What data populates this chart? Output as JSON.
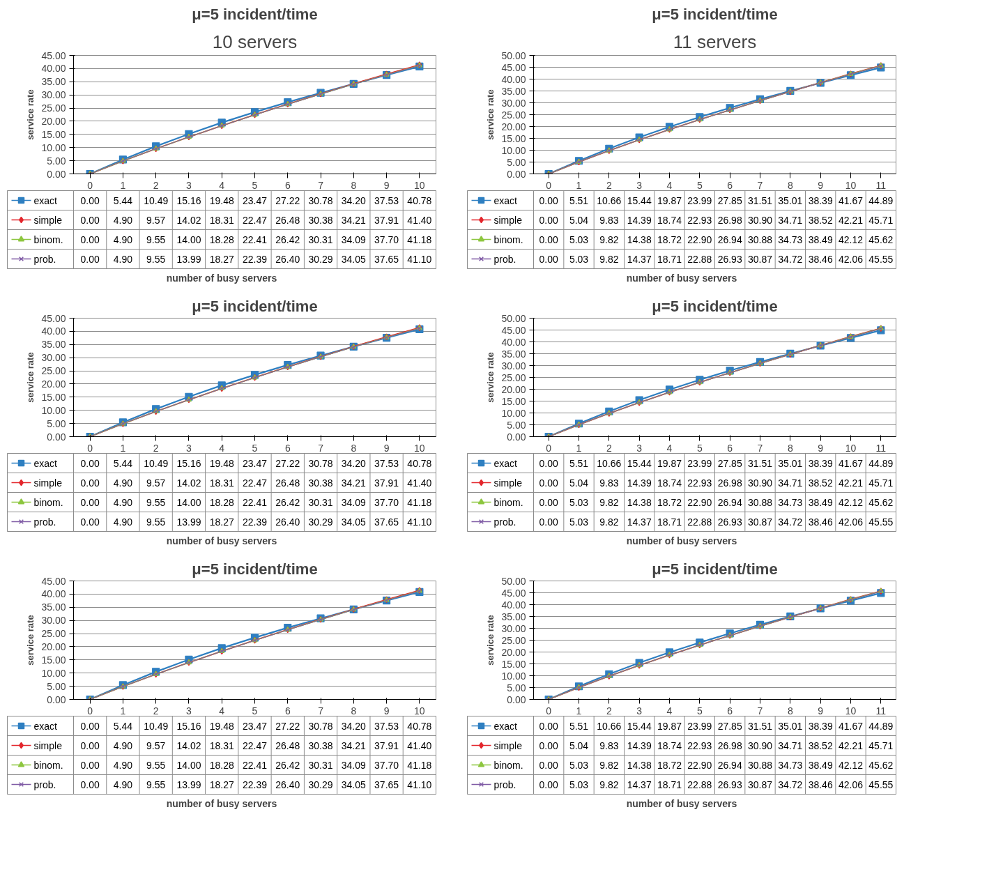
{
  "chart_data": [
    {
      "type": "line",
      "title": "μ=5 incident/time",
      "annotations": [
        "10 servers"
      ],
      "xlabel": "number of busy servers",
      "ylabel": "service rate",
      "categories": [
        "0",
        "1",
        "2",
        "3",
        "4",
        "5",
        "6",
        "7",
        "8",
        "9",
        "10"
      ],
      "ylim": [
        0,
        45
      ],
      "yticks": [
        {
          "value": 0,
          "label": "0.00"
        },
        {
          "value": 5,
          "label": "5.00"
        },
        {
          "value": 10,
          "label": "10.00"
        },
        {
          "value": 15,
          "label": "15.00"
        },
        {
          "value": 20,
          "label": "20.00"
        },
        {
          "value": 25,
          "label": "25.00"
        },
        {
          "value": 30,
          "label": "30.00"
        },
        {
          "value": 35,
          "label": "35.00"
        },
        {
          "value": 40,
          "label": "40.00"
        },
        {
          "value": 45,
          "label": "45.00"
        }
      ],
      "grid": "y",
      "legend": "bottom",
      "series": [
        {
          "name": "exact",
          "color": "#2e7fc1",
          "marker": "square",
          "values": [
            0.0,
            5.44,
            10.49,
            15.16,
            19.48,
            23.47,
            27.22,
            30.78,
            34.2,
            37.53,
            40.78
          ],
          "value_labels": [
            "0.00",
            "5.44",
            "10.49",
            "15.16",
            "19.48",
            "23.47",
            "27.22",
            "30.78",
            "34.20",
            "37.53",
            "40.78"
          ]
        },
        {
          "name": "simple",
          "color": "#e3262c",
          "marker": "diamond",
          "values": [
            0.0,
            4.9,
            9.57,
            14.02,
            18.31,
            22.47,
            26.48,
            30.38,
            34.21,
            37.91,
            41.4
          ],
          "value_labels": [
            "0.00",
            "4.90",
            "9.57",
            "14.02",
            "18.31",
            "22.47",
            "26.48",
            "30.38",
            "34.21",
            "37.91",
            "41.40"
          ]
        },
        {
          "name": "binom.",
          "color": "#8dc63f",
          "marker": "triangle",
          "values": [
            0.0,
            4.9,
            9.55,
            14.0,
            18.28,
            22.41,
            26.42,
            30.31,
            34.09,
            37.7,
            41.18
          ],
          "value_labels": [
            "0.00",
            "4.90",
            "9.55",
            "14.00",
            "18.28",
            "22.41",
            "26.42",
            "30.31",
            "34.09",
            "37.70",
            "41.18"
          ]
        },
        {
          "name": "prob.",
          "color": "#7f5ba5",
          "marker": "cross",
          "values": [
            0.0,
            4.9,
            9.55,
            13.99,
            18.27,
            22.39,
            26.4,
            30.29,
            34.05,
            37.65,
            41.1
          ],
          "value_labels": [
            "0.00",
            "4.90",
            "9.55",
            "13.99",
            "18.27",
            "22.39",
            "26.40",
            "30.29",
            "34.05",
            "37.65",
            "41.10"
          ]
        }
      ]
    },
    {
      "type": "line",
      "title": "μ=5 incident/time",
      "annotations": [
        "11 servers"
      ],
      "xlabel": "number of busy servers",
      "ylabel": "service rate",
      "categories": [
        "0",
        "1",
        "2",
        "3",
        "4",
        "5",
        "6",
        "7",
        "8",
        "9",
        "10",
        "11"
      ],
      "ylim": [
        0,
        50
      ],
      "yticks": [
        {
          "value": 0,
          "label": "0.00"
        },
        {
          "value": 5,
          "label": "5.00"
        },
        {
          "value": 10,
          "label": "10.00"
        },
        {
          "value": 15,
          "label": "15.00"
        },
        {
          "value": 20,
          "label": "20.00"
        },
        {
          "value": 25,
          "label": "25.00"
        },
        {
          "value": 30,
          "label": "30.00"
        },
        {
          "value": 35,
          "label": "35.00"
        },
        {
          "value": 40,
          "label": "40.00"
        },
        {
          "value": 45,
          "label": "45.00"
        },
        {
          "value": 50,
          "label": "50.00"
        }
      ],
      "grid": "y",
      "legend": "bottom",
      "series": [
        {
          "name": "exact",
          "color": "#2e7fc1",
          "marker": "square",
          "values": [
            0.0,
            5.51,
            10.66,
            15.44,
            19.87,
            23.99,
            27.85,
            31.51,
            35.01,
            38.39,
            41.67,
            44.89
          ],
          "value_labels": [
            "0.00",
            "5.51",
            "10.66",
            "15.44",
            "19.87",
            "23.99",
            "27.85",
            "31.51",
            "35.01",
            "38.39",
            "41.67",
            "44.89"
          ]
        },
        {
          "name": "simple",
          "color": "#e3262c",
          "marker": "diamond",
          "values": [
            0.0,
            5.04,
            9.83,
            14.39,
            18.74,
            22.93,
            26.98,
            30.9,
            34.71,
            38.52,
            42.21,
            45.71
          ],
          "value_labels": [
            "0.00",
            "5.04",
            "9.83",
            "14.39",
            "18.74",
            "22.93",
            "26.98",
            "30.90",
            "34.71",
            "38.52",
            "42.21",
            "45.71"
          ]
        },
        {
          "name": "binom.",
          "color": "#8dc63f",
          "marker": "triangle",
          "values": [
            0.0,
            5.03,
            9.82,
            14.38,
            18.72,
            22.9,
            26.94,
            30.88,
            34.73,
            38.49,
            42.12,
            45.62
          ],
          "value_labels": [
            "0.00",
            "5.03",
            "9.82",
            "14.38",
            "18.72",
            "22.90",
            "26.94",
            "30.88",
            "34.73",
            "38.49",
            "42.12",
            "45.62"
          ]
        },
        {
          "name": "prob.",
          "color": "#7f5ba5",
          "marker": "cross",
          "values": [
            0.0,
            5.03,
            9.82,
            14.37,
            18.71,
            22.88,
            26.93,
            30.87,
            34.72,
            38.46,
            42.06,
            45.55
          ],
          "value_labels": [
            "0.00",
            "5.03",
            "9.82",
            "14.37",
            "18.71",
            "22.88",
            "26.93",
            "30.87",
            "34.72",
            "38.46",
            "42.06",
            "45.55"
          ]
        }
      ]
    },
    {
      "type": "line",
      "title": "μ=5 incident/time",
      "xlabel": "number of busy servers",
      "ylabel": "service rate",
      "categories": [
        "0",
        "1",
        "2",
        "3",
        "4",
        "5",
        "6",
        "7",
        "8",
        "9",
        "10"
      ],
      "ylim": [
        0,
        45
      ],
      "yticks": [
        {
          "value": 0,
          "label": "0.00"
        },
        {
          "value": 5,
          "label": "5.00"
        },
        {
          "value": 10,
          "label": "10.00"
        },
        {
          "value": 15,
          "label": "15.00"
        },
        {
          "value": 20,
          "label": "20.00"
        },
        {
          "value": 25,
          "label": "25.00"
        },
        {
          "value": 30,
          "label": "30.00"
        },
        {
          "value": 35,
          "label": "35.00"
        },
        {
          "value": 40,
          "label": "40.00"
        },
        {
          "value": 45,
          "label": "45.00"
        }
      ],
      "grid": "y",
      "legend": "bottom",
      "series": [
        {
          "name": "exact",
          "color": "#2e7fc1",
          "marker": "square",
          "values": [
            0.0,
            5.44,
            10.49,
            15.16,
            19.48,
            23.47,
            27.22,
            30.78,
            34.2,
            37.53,
            40.78
          ],
          "value_labels": [
            "0.00",
            "5.44",
            "10.49",
            "15.16",
            "19.48",
            "23.47",
            "27.22",
            "30.78",
            "34.20",
            "37.53",
            "40.78"
          ]
        },
        {
          "name": "simple",
          "color": "#e3262c",
          "marker": "diamond",
          "values": [
            0.0,
            4.9,
            9.57,
            14.02,
            18.31,
            22.47,
            26.48,
            30.38,
            34.21,
            37.91,
            41.4
          ],
          "value_labels": [
            "0.00",
            "4.90",
            "9.57",
            "14.02",
            "18.31",
            "22.47",
            "26.48",
            "30.38",
            "34.21",
            "37.91",
            "41.40"
          ]
        },
        {
          "name": "binom.",
          "color": "#8dc63f",
          "marker": "triangle",
          "values": [
            0.0,
            4.9,
            9.55,
            14.0,
            18.28,
            22.41,
            26.42,
            30.31,
            34.09,
            37.7,
            41.18
          ],
          "value_labels": [
            "0.00",
            "4.90",
            "9.55",
            "14.00",
            "18.28",
            "22.41",
            "26.42",
            "30.31",
            "34.09",
            "37.70",
            "41.18"
          ]
        },
        {
          "name": "prob.",
          "color": "#7f5ba5",
          "marker": "cross",
          "values": [
            0.0,
            4.9,
            9.55,
            13.99,
            18.27,
            22.39,
            26.4,
            30.29,
            34.05,
            37.65,
            41.1
          ],
          "value_labels": [
            "0.00",
            "4.90",
            "9.55",
            "13.99",
            "18.27",
            "22.39",
            "26.40",
            "30.29",
            "34.05",
            "37.65",
            "41.10"
          ]
        }
      ]
    },
    {
      "type": "line",
      "title": "μ=5 incident/time",
      "xlabel": "number of busy servers",
      "ylabel": "service rate",
      "categories": [
        "0",
        "1",
        "2",
        "3",
        "4",
        "5",
        "6",
        "7",
        "8",
        "9",
        "10",
        "11"
      ],
      "ylim": [
        0,
        50
      ],
      "yticks": [
        {
          "value": 0,
          "label": "0.00"
        },
        {
          "value": 5,
          "label": "5.00"
        },
        {
          "value": 10,
          "label": "10.00"
        },
        {
          "value": 15,
          "label": "15.00"
        },
        {
          "value": 20,
          "label": "20.00"
        },
        {
          "value": 25,
          "label": "25.00"
        },
        {
          "value": 30,
          "label": "30.00"
        },
        {
          "value": 35,
          "label": "35.00"
        },
        {
          "value": 40,
          "label": "40.00"
        },
        {
          "value": 45,
          "label": "45.00"
        },
        {
          "value": 50,
          "label": "50.00"
        }
      ],
      "grid": "y",
      "legend": "bottom",
      "series": [
        {
          "name": "exact",
          "color": "#2e7fc1",
          "marker": "square",
          "values": [
            0.0,
            5.51,
            10.66,
            15.44,
            19.87,
            23.99,
            27.85,
            31.51,
            35.01,
            38.39,
            41.67,
            44.89
          ],
          "value_labels": [
            "0.00",
            "5.51",
            "10.66",
            "15.44",
            "19.87",
            "23.99",
            "27.85",
            "31.51",
            "35.01",
            "38.39",
            "41.67",
            "44.89"
          ]
        },
        {
          "name": "simple",
          "color": "#e3262c",
          "marker": "diamond",
          "values": [
            0.0,
            5.04,
            9.83,
            14.39,
            18.74,
            22.93,
            26.98,
            30.9,
            34.71,
            38.52,
            42.21,
            45.71
          ],
          "value_labels": [
            "0.00",
            "5.04",
            "9.83",
            "14.39",
            "18.74",
            "22.93",
            "26.98",
            "30.90",
            "34.71",
            "38.52",
            "42.21",
            "45.71"
          ]
        },
        {
          "name": "binom.",
          "color": "#8dc63f",
          "marker": "triangle",
          "values": [
            0.0,
            5.03,
            9.82,
            14.38,
            18.72,
            22.9,
            26.94,
            30.88,
            34.73,
            38.49,
            42.12,
            45.62
          ],
          "value_labels": [
            "0.00",
            "5.03",
            "9.82",
            "14.38",
            "18.72",
            "22.90",
            "26.94",
            "30.88",
            "34.73",
            "38.49",
            "42.12",
            "45.62"
          ]
        },
        {
          "name": "prob.",
          "color": "#7f5ba5",
          "marker": "cross",
          "values": [
            0.0,
            5.03,
            9.82,
            14.37,
            18.71,
            22.88,
            26.93,
            30.87,
            34.72,
            38.46,
            42.06,
            45.55
          ],
          "value_labels": [
            "0.00",
            "5.03",
            "9.82",
            "14.37",
            "18.71",
            "22.88",
            "26.93",
            "30.87",
            "34.72",
            "38.46",
            "42.06",
            "45.55"
          ]
        }
      ]
    },
    {
      "type": "line",
      "title": "μ=5 incident/time",
      "xlabel": "number of busy servers",
      "ylabel": "service rate",
      "categories": [
        "0",
        "1",
        "2",
        "3",
        "4",
        "5",
        "6",
        "7",
        "8",
        "9",
        "10"
      ],
      "ylim": [
        0,
        45
      ],
      "yticks": [
        {
          "value": 0,
          "label": "0.00"
        },
        {
          "value": 5,
          "label": "5.00"
        },
        {
          "value": 10,
          "label": "10.00"
        },
        {
          "value": 15,
          "label": "15.00"
        },
        {
          "value": 20,
          "label": "20.00"
        },
        {
          "value": 25,
          "label": "25.00"
        },
        {
          "value": 30,
          "label": "30.00"
        },
        {
          "value": 35,
          "label": "35.00"
        },
        {
          "value": 40,
          "label": "40.00"
        },
        {
          "value": 45,
          "label": "45.00"
        }
      ],
      "grid": "y",
      "legend": "bottom",
      "series": [
        {
          "name": "exact",
          "color": "#2e7fc1",
          "marker": "square",
          "values": [
            0.0,
            5.44,
            10.49,
            15.16,
            19.48,
            23.47,
            27.22,
            30.78,
            34.2,
            37.53,
            40.78
          ],
          "value_labels": [
            "0.00",
            "5.44",
            "10.49",
            "15.16",
            "19.48",
            "23.47",
            "27.22",
            "30.78",
            "34.20",
            "37.53",
            "40.78"
          ]
        },
        {
          "name": "simple",
          "color": "#e3262c",
          "marker": "diamond",
          "values": [
            0.0,
            4.9,
            9.57,
            14.02,
            18.31,
            22.47,
            26.48,
            30.38,
            34.21,
            37.91,
            41.4
          ],
          "value_labels": [
            "0.00",
            "4.90",
            "9.57",
            "14.02",
            "18.31",
            "22.47",
            "26.48",
            "30.38",
            "34.21",
            "37.91",
            "41.40"
          ]
        },
        {
          "name": "binom.",
          "color": "#8dc63f",
          "marker": "triangle",
          "values": [
            0.0,
            4.9,
            9.55,
            14.0,
            18.28,
            22.41,
            26.42,
            30.31,
            34.09,
            37.7,
            41.18
          ],
          "value_labels": [
            "0.00",
            "4.90",
            "9.55",
            "14.00",
            "18.28",
            "22.41",
            "26.42",
            "30.31",
            "34.09",
            "37.70",
            "41.18"
          ]
        },
        {
          "name": "prob.",
          "color": "#7f5ba5",
          "marker": "cross",
          "values": [
            0.0,
            4.9,
            9.55,
            13.99,
            18.27,
            22.39,
            26.4,
            30.29,
            34.05,
            37.65,
            41.1
          ],
          "value_labels": [
            "0.00",
            "4.90",
            "9.55",
            "13.99",
            "18.27",
            "22.39",
            "26.40",
            "30.29",
            "34.05",
            "37.65",
            "41.10"
          ]
        }
      ]
    },
    {
      "type": "line",
      "title": "μ=5 incident/time",
      "xlabel": "number of busy servers",
      "ylabel": "service rate",
      "categories": [
        "0",
        "1",
        "2",
        "3",
        "4",
        "5",
        "6",
        "7",
        "8",
        "9",
        "10",
        "11"
      ],
      "ylim": [
        0,
        50
      ],
      "yticks": [
        {
          "value": 0,
          "label": "0.00"
        },
        {
          "value": 5,
          "label": "5.00"
        },
        {
          "value": 10,
          "label": "10.00"
        },
        {
          "value": 15,
          "label": "15.00"
        },
        {
          "value": 20,
          "label": "20.00"
        },
        {
          "value": 25,
          "label": "25.00"
        },
        {
          "value": 30,
          "label": "30.00"
        },
        {
          "value": 35,
          "label": "35.00"
        },
        {
          "value": 40,
          "label": "40.00"
        },
        {
          "value": 45,
          "label": "45.00"
        },
        {
          "value": 50,
          "label": "50.00"
        }
      ],
      "grid": "y",
      "legend": "bottom",
      "series": [
        {
          "name": "exact",
          "color": "#2e7fc1",
          "marker": "square",
          "values": [
            0.0,
            5.51,
            10.66,
            15.44,
            19.87,
            23.99,
            27.85,
            31.51,
            35.01,
            38.39,
            41.67,
            44.89
          ],
          "value_labels": [
            "0.00",
            "5.51",
            "10.66",
            "15.44",
            "19.87",
            "23.99",
            "27.85",
            "31.51",
            "35.01",
            "38.39",
            "41.67",
            "44.89"
          ]
        },
        {
          "name": "simple",
          "color": "#e3262c",
          "marker": "diamond",
          "values": [
            0.0,
            5.04,
            9.83,
            14.39,
            18.74,
            22.93,
            26.98,
            30.9,
            34.71,
            38.52,
            42.21,
            45.71
          ],
          "value_labels": [
            "0.00",
            "5.04",
            "9.83",
            "14.39",
            "18.74",
            "22.93",
            "26.98",
            "30.90",
            "34.71",
            "38.52",
            "42.21",
            "45.71"
          ]
        },
        {
          "name": "binom.",
          "color": "#8dc63f",
          "marker": "triangle",
          "values": [
            0.0,
            5.03,
            9.82,
            14.38,
            18.72,
            22.9,
            26.94,
            30.88,
            34.73,
            38.49,
            42.12,
            45.62
          ],
          "value_labels": [
            "0.00",
            "5.03",
            "9.82",
            "14.38",
            "18.72",
            "22.90",
            "26.94",
            "30.88",
            "34.73",
            "38.49",
            "42.12",
            "45.62"
          ]
        },
        {
          "name": "prob.",
          "color": "#7f5ba5",
          "marker": "cross",
          "values": [
            0.0,
            5.03,
            9.82,
            14.37,
            18.71,
            22.88,
            26.93,
            30.87,
            34.72,
            38.46,
            42.06,
            45.55
          ],
          "value_labels": [
            "0.00",
            "5.03",
            "9.82",
            "14.37",
            "18.71",
            "22.88",
            "26.93",
            "30.87",
            "34.72",
            "38.46",
            "42.06",
            "45.55"
          ]
        }
      ]
    }
  ]
}
